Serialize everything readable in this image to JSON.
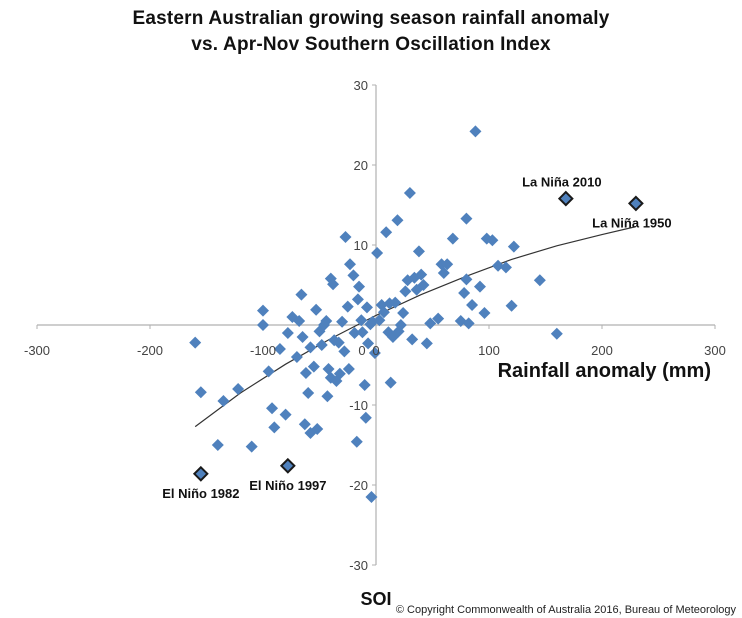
{
  "title_line1": "Eastern Australian growing season rainfall anomaly",
  "title_line2": "vs. Apr-Nov Southern Oscillation Index",
  "copyright": "© Copyright Commonwealth of Australia 2016, Bureau of Meteorology",
  "colors": {
    "point": "#4F81BD",
    "highlight_fill": "#4F81BD",
    "highlight_stroke": "#1a1a1a",
    "trend": "#333333",
    "axis": "#b0b0b0"
  },
  "chart_data": {
    "type": "scatter",
    "xlabel": "Rainfall anomaly (mm)",
    "ylabel": "SOI",
    "xlim": [
      -300,
      300
    ],
    "ylim": [
      -30,
      30
    ],
    "x_ticks": [
      -300,
      -200,
      -100,
      0,
      100,
      200,
      300
    ],
    "y_ticks": [
      -30,
      -20,
      -10,
      0,
      10,
      20,
      30
    ],
    "x_tick_labels": [
      "-300",
      "-200",
      "-100",
      "0",
      "100",
      "200",
      "300"
    ],
    "y_tick_labels": [
      "-30",
      "-20",
      "-10",
      "0",
      "10",
      "20",
      "30"
    ],
    "grid": false,
    "trendline": {
      "type": "polynomial",
      "x": [
        -160,
        -120,
        -80,
        -40,
        0,
        40,
        80,
        120,
        160,
        200,
        230
      ],
      "y": [
        -12.7,
        -8.5,
        -4.9,
        -1.7,
        1.2,
        3.8,
        6.1,
        8.2,
        9.9,
        11.3,
        12.3
      ]
    },
    "points": [
      {
        "x": -160,
        "y": -2.2
      },
      {
        "x": -155,
        "y": -8.4
      },
      {
        "x": -140,
        "y": -15.0
      },
      {
        "x": -135,
        "y": -9.5
      },
      {
        "x": -122,
        "y": -8.0
      },
      {
        "x": -110,
        "y": -15.2
      },
      {
        "x": -100,
        "y": 1.8
      },
      {
        "x": -100,
        "y": 0.0
      },
      {
        "x": -95,
        "y": -5.8
      },
      {
        "x": -92,
        "y": -10.4
      },
      {
        "x": -90,
        "y": -12.8
      },
      {
        "x": -85,
        "y": -3.0
      },
      {
        "x": -80,
        "y": -11.2
      },
      {
        "x": -78,
        "y": -1.0
      },
      {
        "x": -74,
        "y": 1.0
      },
      {
        "x": -70,
        "y": -4.0
      },
      {
        "x": -68,
        "y": 0.5
      },
      {
        "x": -66,
        "y": 3.8
      },
      {
        "x": -65,
        "y": -1.5
      },
      {
        "x": -63,
        "y": -12.4
      },
      {
        "x": -62,
        "y": -6.0
      },
      {
        "x": -60,
        "y": -8.5
      },
      {
        "x": -58,
        "y": -2.8
      },
      {
        "x": -58,
        "y": -13.5
      },
      {
        "x": -55,
        "y": -5.2
      },
      {
        "x": -53,
        "y": 1.9
      },
      {
        "x": -52,
        "y": -13.0
      },
      {
        "x": -50,
        "y": -0.8
      },
      {
        "x": -48,
        "y": -2.5
      },
      {
        "x": -46,
        "y": 0.0
      },
      {
        "x": -44,
        "y": 0.5
      },
      {
        "x": -43,
        "y": -8.9
      },
      {
        "x": -42,
        "y": -5.5
      },
      {
        "x": -40,
        "y": 5.8
      },
      {
        "x": -40,
        "y": -6.6
      },
      {
        "x": -38,
        "y": 5.1
      },
      {
        "x": -37,
        "y": -1.9
      },
      {
        "x": -35,
        "y": -7.0
      },
      {
        "x": -33,
        "y": -2.2
      },
      {
        "x": -32,
        "y": -6.1
      },
      {
        "x": -30,
        "y": 0.4
      },
      {
        "x": -28,
        "y": -3.3
      },
      {
        "x": -27,
        "y": 11.0
      },
      {
        "x": -25,
        "y": 2.3
      },
      {
        "x": -24,
        "y": -5.5
      },
      {
        "x": -23,
        "y": 7.6
      },
      {
        "x": -20,
        "y": 6.2
      },
      {
        "x": -19,
        "y": -1.0
      },
      {
        "x": -17,
        "y": -14.6
      },
      {
        "x": -16,
        "y": 3.2
      },
      {
        "x": -15,
        "y": 4.8
      },
      {
        "x": -13,
        "y": 0.6
      },
      {
        "x": -12,
        "y": -0.9
      },
      {
        "x": -10,
        "y": -7.5
      },
      {
        "x": -9,
        "y": -11.6
      },
      {
        "x": -8,
        "y": 2.2
      },
      {
        "x": -7,
        "y": -2.3
      },
      {
        "x": -5,
        "y": 0.1
      },
      {
        "x": -4,
        "y": -21.5
      },
      {
        "x": -3,
        "y": 0.4
      },
      {
        "x": -1,
        "y": -3.5
      },
      {
        "x": 1,
        "y": 9.0
      },
      {
        "x": 3,
        "y": 0.6
      },
      {
        "x": 5,
        "y": 2.5
      },
      {
        "x": 7,
        "y": 1.6
      },
      {
        "x": 9,
        "y": 11.6
      },
      {
        "x": 11,
        "y": -0.9
      },
      {
        "x": 12,
        "y": 2.7
      },
      {
        "x": 13,
        "y": -7.2
      },
      {
        "x": 15,
        "y": -1.5
      },
      {
        "x": 17,
        "y": 2.8
      },
      {
        "x": 19,
        "y": 13.1
      },
      {
        "x": 20,
        "y": -0.8
      },
      {
        "x": 22,
        "y": 0.0
      },
      {
        "x": 24,
        "y": 1.5
      },
      {
        "x": 26,
        "y": 4.2
      },
      {
        "x": 28,
        "y": 5.6
      },
      {
        "x": 30,
        "y": 16.5
      },
      {
        "x": 32,
        "y": -1.8
      },
      {
        "x": 34,
        "y": 5.9
      },
      {
        "x": 36,
        "y": 4.4
      },
      {
        "x": 38,
        "y": 9.2
      },
      {
        "x": 40,
        "y": 6.3
      },
      {
        "x": 42,
        "y": 5.0
      },
      {
        "x": 45,
        "y": -2.3
      },
      {
        "x": 48,
        "y": 0.2
      },
      {
        "x": 55,
        "y": 0.8
      },
      {
        "x": 58,
        "y": 7.6
      },
      {
        "x": 60,
        "y": 6.5
      },
      {
        "x": 63,
        "y": 7.6
      },
      {
        "x": 68,
        "y": 10.8
      },
      {
        "x": 75,
        "y": 0.5
      },
      {
        "x": 78,
        "y": 4.0
      },
      {
        "x": 80,
        "y": 5.7
      },
      {
        "x": 80,
        "y": 13.3
      },
      {
        "x": 82,
        "y": 0.2
      },
      {
        "x": 85,
        "y": 2.5
      },
      {
        "x": 88,
        "y": 24.2
      },
      {
        "x": 92,
        "y": 4.8
      },
      {
        "x": 96,
        "y": 1.5
      },
      {
        "x": 98,
        "y": 10.8
      },
      {
        "x": 103,
        "y": 10.6
      },
      {
        "x": 108,
        "y": 7.4
      },
      {
        "x": 115,
        "y": 7.2
      },
      {
        "x": 120,
        "y": 2.4
      },
      {
        "x": 122,
        "y": 9.8
      },
      {
        "x": 145,
        "y": 5.6
      },
      {
        "x": 160,
        "y": -1.1
      }
    ],
    "highlighted": [
      {
        "x": 168,
        "y": 15.8,
        "label": "La Niña 2010",
        "label_pos": "above"
      },
      {
        "x": 230,
        "y": 15.2,
        "label": "La Niña 1950",
        "label_pos": "below"
      },
      {
        "x": -155,
        "y": -18.6,
        "label": "El Niño 1982",
        "label_pos": "below"
      },
      {
        "x": -78,
        "y": -17.6,
        "label": "El Niño 1997",
        "label_pos": "below"
      }
    ]
  }
}
